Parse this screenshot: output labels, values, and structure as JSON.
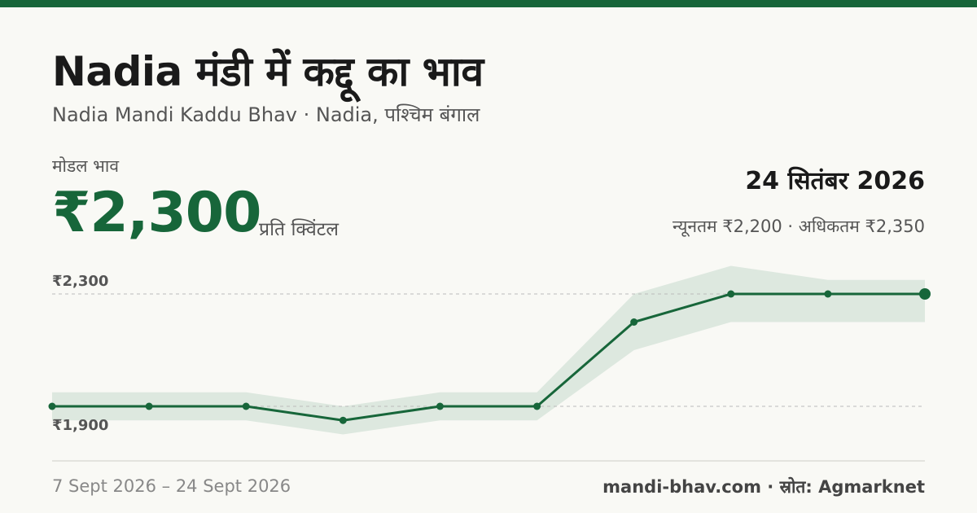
{
  "header": {
    "title": "Nadia मंडी में कद्दू का भाव",
    "subtitle": "Nadia Mandi Kaddu Bhav · Nadia, पश्चिम बंगाल"
  },
  "summary": {
    "modal_label": "मोडल भाव",
    "price": "₹2,300",
    "unit": "प्रति क्विंटल",
    "date": "24 सितंबर 2026",
    "min_max": "न्यूनतम ₹2,200 · अधिकतम ₹2,350"
  },
  "footer": {
    "date_range": "7 Sept 2026 – 24 Sept 2026",
    "source": "mandi-bhav.com · स्रोत: Agmarknet"
  },
  "colors": {
    "accent": "#17663a",
    "band": "#dde8df",
    "gridline": "#bbbbbb"
  },
  "chart_data": {
    "type": "line",
    "y_reference_labels": [
      {
        "value": 2300,
        "label": "₹2,300"
      },
      {
        "value": 1900,
        "label": "₹1,900"
      }
    ],
    "modal": [
      1900,
      1900,
      1900,
      1850,
      1900,
      1900,
      2200,
      2300,
      2300,
      2300
    ],
    "min": [
      1850,
      1850,
      1850,
      1800,
      1850,
      1850,
      2100,
      2200,
      2200,
      2200
    ],
    "max": [
      1950,
      1950,
      1950,
      1900,
      1950,
      1950,
      2300,
      2400,
      2350,
      2350
    ],
    "ylim": [
      1800,
      2400
    ],
    "grid": false,
    "legend": "none"
  }
}
